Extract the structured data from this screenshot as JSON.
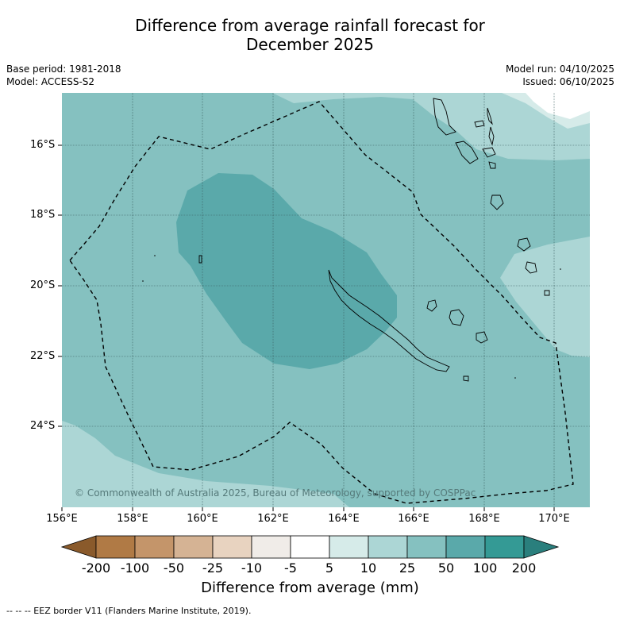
{
  "title_line1": "Difference from average rainfall forecast for",
  "title_line2": "December 2025",
  "base_period": "Base period: 1981-2018",
  "model": "Model: ACCESS-S2",
  "model_run": "Model run: 04/10/2025",
  "issued": "Issued: 06/10/2025",
  "latitude_labels": [
    "16°S",
    "18°S",
    "20°S",
    "22°S",
    "24°S"
  ],
  "longitude_labels": [
    "156°E",
    "158°E",
    "160°E",
    "162°E",
    "164°E",
    "166°E",
    "168°E",
    "170°E"
  ],
  "copyright": "© Commonwealth of Australia 2025, Bureau of Meteorology, supported by COSPPac",
  "colorbar": {
    "title": "Difference from average (mm)",
    "ticks": [
      "-200",
      "-100",
      "-50",
      "-25",
      "-10",
      "-5",
      "5",
      "10",
      "25",
      "50",
      "100",
      "200"
    ],
    "colors": [
      "#8a5a2b",
      "#b07a45",
      "#c4956a",
      "#d5b394",
      "#e8d3c0",
      "#f0ece8",
      "#ffffff",
      "#d6ebe9",
      "#acd6d5",
      "#85c1c0",
      "#5aa9aa",
      "#349a95",
      "#2a7f7d"
    ]
  },
  "regions": [
    "EEZ border",
    "New Caledonia",
    "Vanuatu",
    "Loyalty Islands"
  ],
  "footnote": "--  --  -- EEZ border V11 (Flanders Marine Institute, 2019)."
}
